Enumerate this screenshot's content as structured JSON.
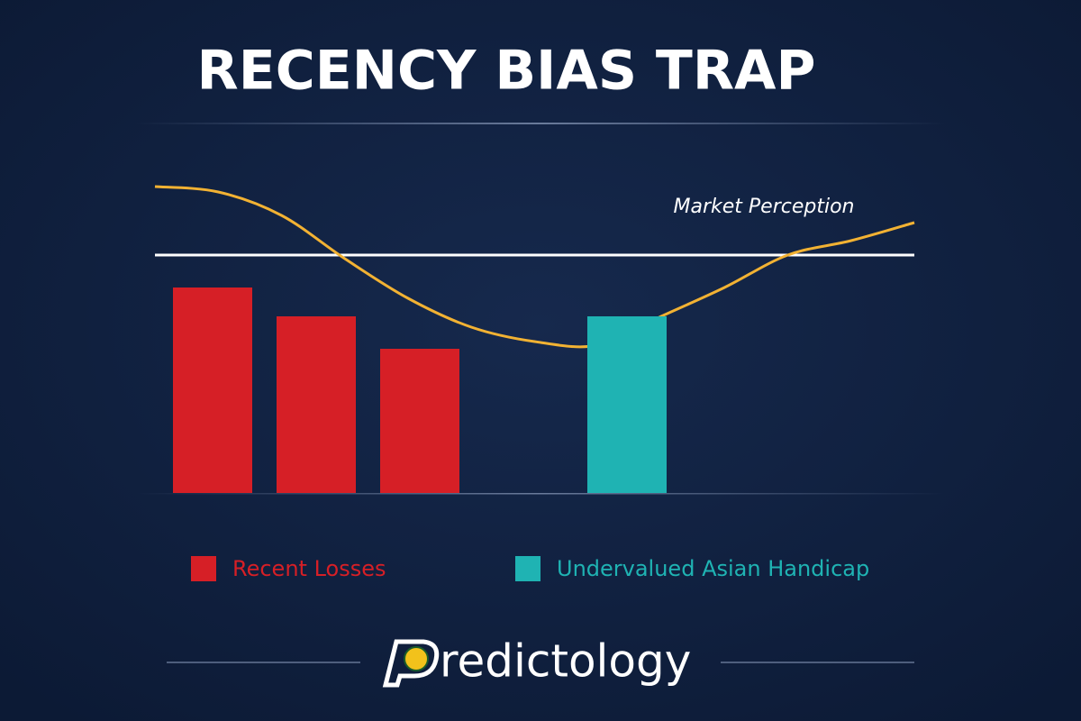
{
  "chart_data": {
    "type": "bar",
    "title": "RECENCY BIAS TRAP",
    "categories": [
      null,
      null,
      null,
      null,
      null
    ],
    "series": [
      {
        "name": "Recent Losses",
        "color": "#d61f26",
        "values": [
          57,
          49,
          40,
          null,
          null
        ]
      },
      {
        "name": "Undervalued Asian Handicap",
        "color": "#1fb3b3",
        "values": [
          null,
          null,
          null,
          null,
          49
        ]
      }
    ],
    "line": {
      "color": "#f2b233",
      "values": [
        85,
        83.5,
        77,
        65,
        54,
        46,
        42,
        41,
        49,
        57,
        66,
        70,
        75
      ]
    },
    "reference_line": 66,
    "annotation": "Market Perception",
    "ylim": [
      0,
      100
    ],
    "brand": "Predictology"
  }
}
